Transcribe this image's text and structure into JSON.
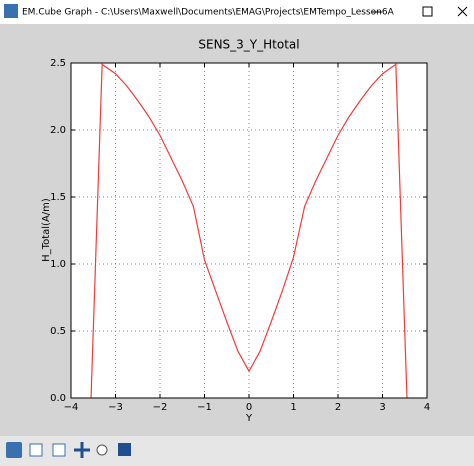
{
  "window": {
    "title": "EM.Cube Graph - C:\\Users\\Maxwell\\Documents\\EMAG\\Projects\\EMTempo_Lesson6A"
  },
  "chart_data": {
    "type": "line",
    "title": "SENS_3_Y_Htotal",
    "x_label": "Y",
    "y_label": "H_Total(A/m)",
    "x": [
      -3.55,
      -3.3,
      -3.0,
      -2.75,
      -2.5,
      -2.25,
      -2.0,
      -1.75,
      -1.5,
      -1.25,
      -1.0,
      -0.75,
      -0.5,
      -0.25,
      0,
      0.25,
      0.5,
      0.75,
      1.0,
      1.25,
      1.5,
      1.75,
      2.0,
      2.25,
      2.5,
      2.75,
      3.0,
      3.3,
      3.55
    ],
    "values": [
      0,
      2.49,
      2.42,
      2.33,
      2.22,
      2.1,
      1.96,
      1.79,
      1.62,
      1.43,
      1.03,
      0.8,
      0.57,
      0.35,
      0.2,
      0.35,
      0.57,
      0.8,
      1.05,
      1.43,
      1.62,
      1.79,
      1.96,
      2.1,
      2.22,
      2.33,
      2.42,
      2.49,
      0
    ],
    "color": "#f03c3c",
    "xlim": [
      -4,
      4
    ],
    "ylim": [
      0,
      2.5
    ],
    "xticks": [
      {
        "value": -4,
        "label": "−4"
      },
      {
        "value": -3,
        "label": "−3"
      },
      {
        "value": -2,
        "label": "−2"
      },
      {
        "value": -1,
        "label": "−1"
      },
      0,
      1,
      2,
      3,
      4
    ],
    "yticks": [
      {
        "value": 0,
        "label": "0.0"
      },
      {
        "value": 0.5,
        "label": "0.5"
      },
      {
        "value": 1,
        "label": "1.0"
      },
      {
        "value": 1.5,
        "label": "1.5"
      },
      {
        "value": 2,
        "label": "2.0"
      },
      {
        "value": 2.5,
        "label": "2.5"
      }
    ],
    "grid": true
  }
}
